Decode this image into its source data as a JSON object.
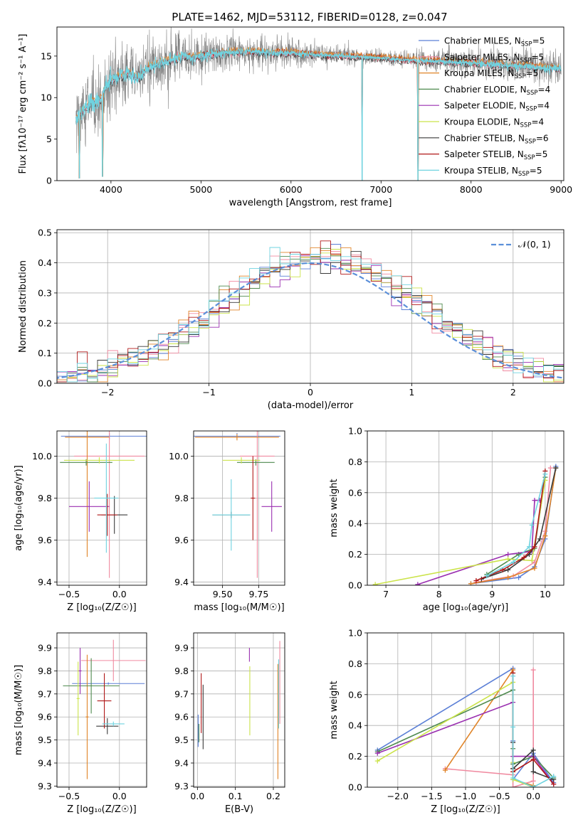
{
  "figure": {
    "title": "PLATE=1462, MJD=53112, FIBERID=0128, z=0.047"
  },
  "models": [
    {
      "name": "Chabrier MILES",
      "nssp": "5",
      "color": "#5b7fd6"
    },
    {
      "name": "Salpeter MILES",
      "nssp": "5",
      "color": "#f08aa0"
    },
    {
      "name": "Kroupa MILES",
      "nssp": "5",
      "color": "#e08428"
    },
    {
      "name": "Chabrier ELODIE",
      "nssp": "4",
      "color": "#4f8a4f"
    },
    {
      "name": "Salpeter ELODIE",
      "nssp": "4",
      "color": "#9a2fb0"
    },
    {
      "name": "Kroupa ELODIE",
      "nssp": "4",
      "color": "#cbe34a"
    },
    {
      "name": "Chabrier STELIB",
      "nssp": "6",
      "color": "#3a3a3a"
    },
    {
      "name": "Salpeter STELIB",
      "nssp": "5",
      "color": "#b01818"
    },
    {
      "name": "Kroupa STELIB",
      "nssp": "5",
      "color": "#6fd3e0"
    }
  ],
  "chart_data": [
    {
      "id": "spectrum",
      "type": "line",
      "xlabel": "wavelength [Angstrom, rest frame]",
      "ylabel": "Flux [fλ10⁻¹⁷ erg cm⁻² s⁻¹ A⁻¹]",
      "xlim": [
        3400,
        9030
      ],
      "ylim": [
        0,
        18.5
      ],
      "xticks": [
        4000,
        5000,
        6000,
        7000,
        8000,
        9000
      ],
      "yticks": [
        0,
        5,
        10,
        15
      ],
      "data_color": "#808080",
      "model_color": "#6fd3e0",
      "data_x_range": [
        3610,
        9000
      ],
      "legend": "top-right",
      "envelope": {
        "x": [
          3610,
          3650,
          3700,
          3750,
          3800,
          3850,
          3900,
          3950,
          4000,
          4100,
          4200,
          4300,
          4400,
          4500,
          4600,
          4700,
          4800,
          4900,
          5000,
          5200,
          5400,
          5600,
          5800,
          6000,
          6200,
          6400,
          6600,
          6800,
          7000,
          7200,
          7400,
          7600,
          7800,
          8000,
          8200,
          8400,
          8600,
          8800,
          9000
        ],
        "y": [
          7.5,
          8.0,
          8.5,
          9.0,
          9.5,
          9.3,
          10.2,
          11.5,
          12.0,
          12.6,
          13.0,
          12.2,
          13.5,
          14.0,
          14.3,
          14.6,
          15.0,
          14.8,
          15.0,
          15.3,
          15.5,
          15.5,
          15.4,
          15.4,
          15.2,
          15.1,
          15.0,
          14.9,
          14.8,
          14.6,
          14.5,
          14.4,
          14.3,
          14.2,
          14.0,
          13.9,
          13.8,
          13.6,
          13.5
        ]
      },
      "noise_amplitude": [
        {
          "x": 3610,
          "amp": 6.0
        },
        {
          "x": 5500,
          "amp": 2.5
        },
        {
          "x": 7000,
          "amp": 1.2
        },
        {
          "x": 9000,
          "amp": 3.0
        }
      ],
      "drops": [
        {
          "x": 3650,
          "y": 0.3
        },
        {
          "x": 3905,
          "y": 0.5
        },
        {
          "x": 6790,
          "y": 0.0
        },
        {
          "x": 7410,
          "y": 0.0
        }
      ]
    },
    {
      "id": "residuals",
      "type": "line",
      "xlabel": "(data-model)/error",
      "ylabel": "Normed distribution",
      "xlim": [
        -2.5,
        2.5
      ],
      "ylim": [
        0,
        0.51
      ],
      "xticks": [
        -2,
        -1,
        0,
        1,
        2
      ],
      "yticks": [
        0,
        0.1,
        0.2,
        0.3,
        0.4,
        0.5
      ],
      "grid": true,
      "bin_width": 0.1,
      "gauss_label": "𝒩(0, 1)",
      "gauss_color": "#5b8fd9",
      "legend": "top-right"
    },
    {
      "id": "age-vs-metal",
      "type": "scatter",
      "xlabel": "Z [log₁₀(Z/Z☉)]",
      "ylabel": "age  [log₁₀(age/yr)]",
      "xlim": [
        -0.62,
        0.27
      ],
      "ylim": [
        9.385,
        10.12
      ],
      "xticks": [
        -0.5,
        0.0
      ],
      "yticks": [
        9.4,
        9.6,
        9.8,
        10.0
      ],
      "grid": true,
      "points": [
        {
          "model": 0,
          "x": -0.1,
          "xerr": 0.48,
          "y": 10.095,
          "yerr": 0.015
        },
        {
          "model": 1,
          "x": -0.1,
          "xerr": 0.35,
          "y": 10.0,
          "yerr": 0.58
        },
        {
          "model": 2,
          "x": -0.32,
          "xerr": 0.22,
          "y": 10.09,
          "yerr": 0.57
        },
        {
          "model": 3,
          "x": -0.33,
          "xerr": 0.26,
          "y": 9.97,
          "yerr": 0.015
        },
        {
          "model": 4,
          "x": -0.3,
          "xerr": 0.2,
          "y": 9.76,
          "yerr": 0.12
        },
        {
          "model": 5,
          "x": -0.2,
          "xerr": 0.35,
          "y": 9.98,
          "yerr": 0.015
        },
        {
          "model": 6,
          "x": -0.05,
          "xerr": 0.13,
          "y": 9.72,
          "yerr": 0.09
        },
        {
          "model": 7,
          "x": -0.12,
          "xerr": 0.1,
          "y": 9.72,
          "yerr": 0.1
        },
        {
          "model": 8,
          "x": -0.13,
          "xerr": 0.12,
          "y": 9.8,
          "yerr": 0.26
        }
      ]
    },
    {
      "id": "age-vs-mass",
      "type": "scatter",
      "xlabel": "mass [log₁₀(M/M☉)]",
      "ylabel": "",
      "xlim": [
        9.3,
        9.93
      ],
      "ylim": [
        9.385,
        10.12
      ],
      "xticks": [
        9.5,
        9.75
      ],
      "yticks": [
        9.4,
        9.6,
        9.8,
        10.0
      ],
      "grid": true,
      "points": [
        {
          "model": 0,
          "x": 9.6,
          "xerr": 0.3,
          "y": 10.095,
          "yerr": 0.015
        },
        {
          "model": 1,
          "x": 9.74,
          "xerr": 0.12,
          "y": 10.0,
          "yerr": 0.58
        },
        {
          "model": 2,
          "x": 9.6,
          "xerr": 0.29,
          "y": 10.09,
          "yerr": 0.015
        },
        {
          "model": 3,
          "x": 9.73,
          "xerr": 0.13,
          "y": 9.97,
          "yerr": 0.015
        },
        {
          "model": 4,
          "x": 9.84,
          "xerr": 0.07,
          "y": 9.76,
          "yerr": 0.12
        },
        {
          "model": 5,
          "x": 9.63,
          "xerr": 0.13,
          "y": 9.98,
          "yerr": 0.015
        },
        {
          "model": 6,
          "x": 9.56,
          "xerr": 0.13,
          "y": 9.72,
          "yerr": 0.015
        },
        {
          "model": 7,
          "x": 9.71,
          "xerr": 0.015,
          "y": 9.8,
          "yerr": 0.2
        },
        {
          "model": 8,
          "x": 9.56,
          "xerr": 0.13,
          "y": 9.72,
          "yerr": 0.17
        }
      ]
    },
    {
      "id": "mass-weight-vs-age",
      "type": "line",
      "xlabel": "age  [log₁₀(age/yr)]",
      "ylabel": "mass weight",
      "xlim": [
        6.65,
        10.35
      ],
      "ylim": [
        0,
        1.0
      ],
      "xticks": [
        7,
        8,
        9,
        10
      ],
      "yticks": [
        0.0,
        0.2,
        0.4,
        0.6,
        0.8,
        1.0
      ],
      "grid": true,
      "series": [
        {
          "model": 0,
          "x": [
            8.6,
            9.5,
            9.8,
            10.0,
            10.2
          ],
          "y": [
            0.01,
            0.05,
            0.12,
            0.3,
            0.77
          ]
        },
        {
          "model": 1,
          "x": [
            8.7,
            9.4,
            9.8,
            10.0,
            10.1
          ],
          "y": [
            0.02,
            0.06,
            0.15,
            0.35,
            0.76
          ]
        },
        {
          "model": 2,
          "x": [
            8.6,
            9.3,
            9.8,
            10.0,
            10.2
          ],
          "y": [
            0.01,
            0.05,
            0.11,
            0.32,
            0.76
          ]
        },
        {
          "model": 3,
          "x": [
            8.9,
            9.5,
            9.8,
            10.0
          ],
          "y": [
            0.07,
            0.2,
            0.24,
            0.7
          ]
        },
        {
          "model": 4,
          "x": [
            7.6,
            9.3,
            9.75,
            9.8,
            9.9
          ],
          "y": [
            0.005,
            0.2,
            0.22,
            0.55,
            0.55
          ]
        },
        {
          "model": 5,
          "x": [
            6.8,
            9.3,
            9.75,
            10.0
          ],
          "y": [
            0.005,
            0.17,
            0.16,
            0.68
          ]
        },
        {
          "model": 6,
          "x": [
            8.8,
            9.3,
            9.7,
            9.9,
            10.2
          ],
          "y": [
            0.04,
            0.1,
            0.2,
            0.3,
            0.76
          ]
        },
        {
          "model": 7,
          "x": [
            8.7,
            9.2,
            9.6,
            9.8,
            10.0
          ],
          "y": [
            0.03,
            0.1,
            0.18,
            0.25,
            0.74
          ]
        },
        {
          "model": 8,
          "x": [
            8.9,
            9.4,
            9.7,
            9.75,
            10.0
          ],
          "y": [
            0.06,
            0.15,
            0.25,
            0.39,
            0.72
          ]
        }
      ]
    },
    {
      "id": "mass-vs-metal",
      "type": "scatter",
      "xlabel": "Z [log₁₀(Z/Z☉)]",
      "ylabel": "mass [log₁₀(M/M☉)]",
      "xlim": [
        -0.62,
        0.27
      ],
      "ylim": [
        9.295,
        9.965
      ],
      "xticks": [
        -0.5,
        0.0
      ],
      "yticks": [
        9.3,
        9.4,
        9.5,
        9.6,
        9.7,
        9.8,
        9.9
      ],
      "grid": true,
      "points": [
        {
          "model": 0,
          "x": -0.11,
          "xerr": 0.36,
          "y": 9.745,
          "yerr": 0.005
        },
        {
          "model": 1,
          "x": -0.06,
          "xerr": 0.32,
          "y": 9.845,
          "yerr": 0.09
        },
        {
          "model": 2,
          "x": -0.32,
          "xerr": 0.015,
          "y": 9.6,
          "yerr": 0.27
        },
        {
          "model": 3,
          "x": -0.28,
          "xerr": 0.28,
          "y": 9.735,
          "yerr": 0.12
        },
        {
          "model": 4,
          "x": -0.39,
          "xerr": 0.015,
          "y": 9.8,
          "yerr": 0.1
        },
        {
          "model": 5,
          "x": -0.41,
          "xerr": 0.015,
          "y": 9.68,
          "yerr": 0.16
        },
        {
          "model": 6,
          "x": -0.12,
          "xerr": 0.11,
          "y": 9.56,
          "yerr": 0.035
        },
        {
          "model": 7,
          "x": -0.15,
          "xerr": 0.07,
          "y": 9.67,
          "yerr": 0.12
        },
        {
          "model": 8,
          "x": -0.06,
          "xerr": 0.11,
          "y": 9.57,
          "yerr": 0.01
        }
      ]
    },
    {
      "id": "mass-vs-ebv",
      "type": "scatter",
      "xlabel": "E(B-V)",
      "ylabel": "",
      "xlim": [
        -0.01,
        0.23
      ],
      "ylim": [
        9.295,
        9.965
      ],
      "xticks": [
        0.0,
        0.1,
        0.2
      ],
      "yticks": [
        9.3,
        9.4,
        9.5,
        9.6,
        9.7,
        9.8,
        9.9
      ],
      "grid": true,
      "points": [
        {
          "model": 0,
          "x": 0.002,
          "xerr": 0.0,
          "y": 9.54,
          "yerr": 0.07
        },
        {
          "model": 1,
          "x": 0.217,
          "xerr": 0.0,
          "y": 9.75,
          "yerr": 0.18
        },
        {
          "model": 2,
          "x": 0.212,
          "xerr": 0.0,
          "y": 9.58,
          "yerr": 0.25
        },
        {
          "model": 3,
          "x": 0.004,
          "xerr": 0.0,
          "y": 9.53,
          "yerr": 0.04
        },
        {
          "model": 4,
          "x": 0.137,
          "xerr": 0.0,
          "y": 9.87,
          "yerr": 0.03
        },
        {
          "model": 5,
          "x": 0.138,
          "xerr": 0.0,
          "y": 9.67,
          "yerr": 0.15
        },
        {
          "model": 6,
          "x": 0.015,
          "xerr": 0.0,
          "y": 9.6,
          "yerr": 0.14
        },
        {
          "model": 7,
          "x": 0.01,
          "xerr": 0.0,
          "y": 9.66,
          "yerr": 0.13
        },
        {
          "model": 8,
          "x": 0.214,
          "xerr": 0.0,
          "y": 9.7,
          "yerr": 0.15
        }
      ]
    },
    {
      "id": "mass-weight-vs-metal",
      "type": "line",
      "xlabel": "Z [log₁₀(Z/Z☉)]",
      "ylabel": "mass weight",
      "xlim": [
        -2.45,
        0.45
      ],
      "ylim": [
        0,
        1.0
      ],
      "xticks": [
        -2.0,
        -1.5,
        -1.0,
        -0.5,
        0.0
      ],
      "yticks": [
        0.0,
        0.2,
        0.4,
        0.6,
        0.8,
        1.0
      ],
      "grid": true,
      "series": [
        {
          "model": 0,
          "x": [
            -2.3,
            -0.3,
            -0.3,
            -0.3,
            0.0,
            0.3
          ],
          "y": [
            0.24,
            0.77,
            0.3,
            0.05,
            0.22,
            0.03
          ]
        },
        {
          "model": 1,
          "x": [
            -1.3,
            -0.3,
            -0.3,
            0.0,
            0.0
          ],
          "y": [
            0.12,
            0.08,
            0.0,
            0.04,
            0.76
          ]
        },
        {
          "model": 2,
          "x": [
            -1.3,
            -0.3,
            -0.3,
            -0.3,
            0.0
          ],
          "y": [
            0.11,
            0.76,
            0.12,
            0.05,
            0.01
          ]
        },
        {
          "model": 3,
          "x": [
            -2.3,
            -0.3,
            -0.3,
            -0.3,
            0.0,
            0.3
          ],
          "y": [
            0.23,
            0.63,
            0.25,
            0.15,
            0.2,
            0.06
          ]
        },
        {
          "model": 4,
          "x": [
            -2.3,
            -0.3,
            -0.3,
            0.0,
            0.3
          ],
          "y": [
            0.22,
            0.55,
            0.2,
            0.2,
            0.02
          ]
        },
        {
          "model": 5,
          "x": [
            -2.3,
            -0.3,
            -0.3,
            -0.3,
            0.0
          ],
          "y": [
            0.17,
            0.68,
            0.16,
            0.05,
            0.0
          ]
        },
        {
          "model": 6,
          "x": [
            -0.3,
            -0.3,
            0.0,
            0.0,
            0.3
          ],
          "y": [
            0.29,
            0.12,
            0.24,
            0.1,
            0.05
          ]
        },
        {
          "model": 7,
          "x": [
            -0.3,
            -0.3,
            0.0,
            0.3
          ],
          "y": [
            0.74,
            0.1,
            0.18,
            0.02
          ]
        },
        {
          "model": 8,
          "x": [
            -0.3,
            -0.3,
            -0.3,
            0.0,
            0.3
          ],
          "y": [
            0.72,
            0.39,
            0.06,
            0.0,
            0.07
          ]
        }
      ]
    }
  ]
}
